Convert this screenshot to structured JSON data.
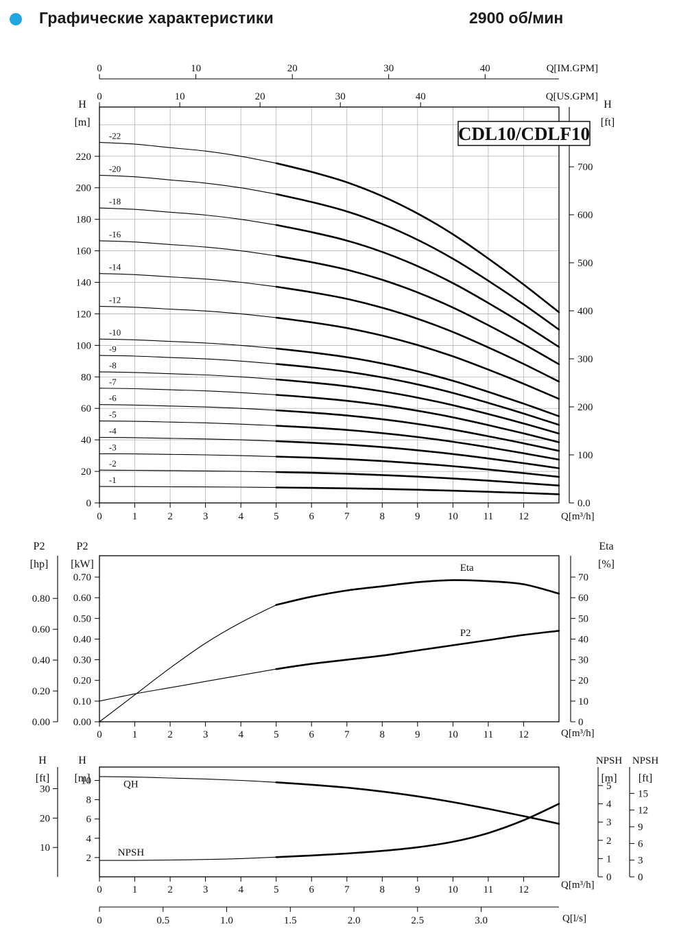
{
  "page": {
    "title": "Графические характеристики",
    "rpm": "2900 об/мин",
    "bullet_color": "#22a7e0"
  },
  "chart_data": [
    {
      "id": "hq",
      "type": "line",
      "title": "CDL10/CDLF10",
      "thick_from_q": 5,
      "x_axis": {
        "label": "Q[m³/h]",
        "ticks": [
          [
            "0",
            0
          ],
          [
            "1",
            1
          ],
          [
            "2",
            2
          ],
          [
            "3",
            3
          ],
          [
            "4",
            4
          ],
          [
            "5",
            5
          ],
          [
            "6",
            6
          ],
          [
            "7",
            7
          ],
          [
            "8",
            8
          ],
          [
            "9",
            9
          ],
          [
            "10",
            10
          ],
          [
            "11",
            11
          ],
          [
            "12",
            12
          ]
        ],
        "max": 13
      },
      "top_axes": [
        {
          "label": "Q[IM.GPM]",
          "ticks": [
            [
              "0",
              0
            ],
            [
              "10",
              10
            ],
            [
              "20",
              20
            ],
            [
              "30",
              30
            ],
            [
              "40",
              40
            ]
          ]
        },
        {
          "label": "Q[US.GPM]",
          "ticks": [
            [
              "0",
              0
            ],
            [
              "10",
              10
            ],
            [
              "20",
              20
            ],
            [
              "30",
              30
            ],
            [
              "40",
              40
            ]
          ]
        }
      ],
      "y_left": {
        "title": "H",
        "unit": "[m]",
        "ticks": [
          [
            "0",
            0
          ],
          [
            "20",
            20
          ],
          [
            "40",
            40
          ],
          [
            "60",
            60
          ],
          [
            "80",
            80
          ],
          [
            "100",
            100
          ],
          [
            "120",
            120
          ],
          [
            "140",
            140
          ],
          [
            "160",
            160
          ],
          [
            "180",
            180
          ],
          [
            "200",
            200
          ],
          [
            "220",
            220
          ]
        ]
      },
      "y_right": {
        "title": "H",
        "unit": "[ft]",
        "ticks": [
          [
            "0.0",
            0
          ],
          [
            "100",
            100
          ],
          [
            "200",
            200
          ],
          [
            "300",
            300
          ],
          [
            "400",
            400
          ],
          [
            "500",
            500
          ],
          [
            "600",
            600
          ],
          [
            "700",
            700
          ]
        ]
      },
      "x": [
        0,
        1,
        2,
        3,
        4,
        5,
        6,
        7,
        8,
        9,
        10,
        11,
        12,
        13
      ],
      "series": [
        {
          "name": "-22",
          "values": [
            228.8,
            227.7,
            225.5,
            223.3,
            220.0,
            215.6,
            210.1,
            203.5,
            194.7,
            183.7,
            170.5,
            155.1,
            138.6,
            121.0
          ]
        },
        {
          "name": "-20",
          "values": [
            208.0,
            207.0,
            205.0,
            203.0,
            200.0,
            196.0,
            191.0,
            185.0,
            177.0,
            167.0,
            155.0,
            141.0,
            126.0,
            110.0
          ]
        },
        {
          "name": "-18",
          "values": [
            187.2,
            186.3,
            184.5,
            182.7,
            180.0,
            176.4,
            171.9,
            166.5,
            159.3,
            150.3,
            139.5,
            126.9,
            113.4,
            99.0
          ]
        },
        {
          "name": "-16",
          "values": [
            166.4,
            165.6,
            164.0,
            162.4,
            160.0,
            156.8,
            152.8,
            148.0,
            141.6,
            133.6,
            124.0,
            112.8,
            100.8,
            88.0
          ]
        },
        {
          "name": "-14",
          "values": [
            145.6,
            144.9,
            143.5,
            142.1,
            140.0,
            137.2,
            133.7,
            129.5,
            123.9,
            116.9,
            108.5,
            98.7,
            88.2,
            77.0
          ]
        },
        {
          "name": "-12",
          "values": [
            124.8,
            124.2,
            123.0,
            121.8,
            120.0,
            117.6,
            114.6,
            111.0,
            106.2,
            100.2,
            93.0,
            84.6,
            75.6,
            66.0
          ]
        },
        {
          "name": "-10",
          "values": [
            104.0,
            103.5,
            102.5,
            101.5,
            100.0,
            98.0,
            95.5,
            92.5,
            88.5,
            83.5,
            77.5,
            70.5,
            63.0,
            55.0
          ]
        },
        {
          "name": "-9",
          "values": [
            93.6,
            93.2,
            92.3,
            91.4,
            90.0,
            88.2,
            86.0,
            83.3,
            79.7,
            75.2,
            69.8,
            63.5,
            56.7,
            49.5
          ]
        },
        {
          "name": "-8",
          "values": [
            83.2,
            82.8,
            82.0,
            81.2,
            80.0,
            78.4,
            76.4,
            74.0,
            70.8,
            66.8,
            62.0,
            56.4,
            50.4,
            44.0
          ]
        },
        {
          "name": "-7",
          "values": [
            72.8,
            72.5,
            71.8,
            71.1,
            70.0,
            68.6,
            66.9,
            64.8,
            62.0,
            58.5,
            54.3,
            49.4,
            44.1,
            38.5
          ]
        },
        {
          "name": "-6",
          "values": [
            62.4,
            62.1,
            61.5,
            60.9,
            60.0,
            58.8,
            57.3,
            55.5,
            53.1,
            50.1,
            46.5,
            42.3,
            37.8,
            33.0
          ]
        },
        {
          "name": "-5",
          "values": [
            52.0,
            51.8,
            51.3,
            50.8,
            50.0,
            49.0,
            47.8,
            46.3,
            44.3,
            41.8,
            38.8,
            35.3,
            31.5,
            27.5
          ]
        },
        {
          "name": "-4",
          "values": [
            41.6,
            41.4,
            41.0,
            40.6,
            40.0,
            39.2,
            38.2,
            37.0,
            35.4,
            33.4,
            31.0,
            28.2,
            25.2,
            22.0
          ]
        },
        {
          "name": "-3",
          "values": [
            31.2,
            31.1,
            30.8,
            30.5,
            30.0,
            29.4,
            28.7,
            27.8,
            26.6,
            25.1,
            23.3,
            21.2,
            18.9,
            16.5
          ]
        },
        {
          "name": "-2",
          "values": [
            20.8,
            20.7,
            20.5,
            20.3,
            20.0,
            19.6,
            19.1,
            18.5,
            17.7,
            16.7,
            15.5,
            14.1,
            12.6,
            11.0
          ]
        },
        {
          "name": "-1",
          "values": [
            10.4,
            10.35,
            10.25,
            10.15,
            10.0,
            9.8,
            9.55,
            9.25,
            8.85,
            8.35,
            7.75,
            7.05,
            6.3,
            5.5
          ]
        }
      ]
    },
    {
      "id": "power-efficiency",
      "type": "line",
      "thick_from_q": 5,
      "x_axis": {
        "label": "Q[m³/h]",
        "ticks": [
          [
            "0",
            0
          ],
          [
            "1",
            1
          ],
          [
            "2",
            2
          ],
          [
            "3",
            3
          ],
          [
            "4",
            4
          ],
          [
            "5",
            5
          ],
          [
            "6",
            6
          ],
          [
            "7",
            7
          ],
          [
            "8",
            8
          ],
          [
            "9",
            9
          ],
          [
            "10",
            10
          ],
          [
            "11",
            11
          ],
          [
            "12",
            12
          ]
        ],
        "max": 13
      },
      "y_left_outer": {
        "title": "P2",
        "unit": "[hp]",
        "ticks": [
          [
            "0.00",
            0
          ],
          [
            "0.20",
            0.2
          ],
          [
            "0.40",
            0.4
          ],
          [
            "0.60",
            0.6
          ],
          [
            "0.80",
            0.8
          ]
        ]
      },
      "y_left": {
        "title": "P2",
        "unit": "[kW]",
        "ticks": [
          [
            "0.00",
            0
          ],
          [
            "0.10",
            0.1
          ],
          [
            "0.20",
            0.2
          ],
          [
            "0.30",
            0.3
          ],
          [
            "0.40",
            0.4
          ],
          [
            "0.50",
            0.5
          ],
          [
            "0.60",
            0.6
          ],
          [
            "0.70",
            0.7
          ]
        ]
      },
      "y_right": {
        "title": "Eta",
        "unit": "[%]",
        "ticks": [
          [
            "0",
            0
          ],
          [
            "10",
            10
          ],
          [
            "20",
            20
          ],
          [
            "30",
            30
          ],
          [
            "40",
            40
          ],
          [
            "50",
            50
          ],
          [
            "60",
            60
          ],
          [
            "70",
            70
          ]
        ]
      },
      "x": [
        0,
        1,
        2,
        3,
        4,
        5,
        6,
        7,
        8,
        9,
        10,
        11,
        12,
        13
      ],
      "series": [
        {
          "name": "Eta",
          "axis": "eta",
          "label_pos": [
            10.2,
            73
          ],
          "values": [
            0,
            13,
            26,
            38,
            48,
            56.5,
            60.5,
            63.5,
            65.5,
            67.5,
            68.5,
            68,
            66.5,
            62
          ]
        },
        {
          "name": "P2",
          "axis": "kw",
          "label_pos": [
            10.2,
            0.415
          ],
          "values": [
            0.1,
            0.135,
            0.165,
            0.195,
            0.225,
            0.255,
            0.28,
            0.3,
            0.32,
            0.345,
            0.37,
            0.395,
            0.42,
            0.44
          ]
        }
      ]
    },
    {
      "id": "qh-npsh",
      "type": "line",
      "thick_from_q": 5,
      "x_axis": {
        "label": "Q[m³/h]",
        "ticks": [
          [
            "0",
            0
          ],
          [
            "1",
            1
          ],
          [
            "2",
            2
          ],
          [
            "3",
            3
          ],
          [
            "4",
            4
          ],
          [
            "5",
            5
          ],
          [
            "6",
            6
          ],
          [
            "7",
            7
          ],
          [
            "8",
            8
          ],
          [
            "9",
            9
          ],
          [
            "10",
            10
          ],
          [
            "11",
            11
          ],
          [
            "12",
            12
          ]
        ],
        "max": 13
      },
      "x_axis2": {
        "label": "Q[l/s]",
        "ticks": [
          [
            "0",
            0
          ],
          [
            "0.5",
            0.5
          ],
          [
            "1.0",
            1.0
          ],
          [
            "1.5",
            1.5
          ],
          [
            "2.0",
            2.0
          ],
          [
            "2.5",
            2.5
          ],
          [
            "3.0",
            3.0
          ]
        ]
      },
      "y_left_outer": {
        "title": "H",
        "unit": "[ft]",
        "ticks": [
          [
            "10",
            10
          ],
          [
            "20",
            20
          ],
          [
            "30",
            30
          ]
        ]
      },
      "y_left": {
        "title": "H",
        "unit": "[m]",
        "ticks": [
          [
            "2",
            2
          ],
          [
            "4",
            4
          ],
          [
            "6",
            6
          ],
          [
            "8",
            8
          ],
          [
            "10",
            10
          ]
        ]
      },
      "y_right": {
        "title": "NPSH",
        "unit": "[m]",
        "ticks": [
          [
            "0",
            0
          ],
          [
            "1",
            1
          ],
          [
            "2",
            2
          ],
          [
            "3",
            3
          ],
          [
            "4",
            4
          ],
          [
            "5",
            5
          ]
        ]
      },
      "y_right_outer": {
        "title": "NPSH",
        "unit": "[ft]",
        "ticks": [
          [
            "0",
            0
          ],
          [
            "3",
            3
          ],
          [
            "6",
            6
          ],
          [
            "9",
            9
          ],
          [
            "12",
            12
          ],
          [
            "15",
            15
          ]
        ]
      },
      "x": [
        0,
        1,
        2,
        3,
        4,
        5,
        6,
        7,
        8,
        9,
        10,
        11,
        12,
        13
      ],
      "series": [
        {
          "name": "QH",
          "axis": "h_m",
          "label_pos": [
            0.68,
            9.3
          ],
          "values": [
            10.4,
            10.35,
            10.25,
            10.15,
            10.0,
            9.8,
            9.55,
            9.25,
            8.85,
            8.35,
            7.75,
            7.05,
            6.3,
            5.5
          ]
        },
        {
          "name": "NPSH",
          "axis": "npsh_m",
          "label_pos": [
            0.52,
            1.17
          ],
          "values": [
            0.9,
            0.9,
            0.92,
            0.95,
            1.0,
            1.08,
            1.17,
            1.28,
            1.42,
            1.62,
            1.92,
            2.4,
            3.1,
            4.0
          ]
        }
      ]
    }
  ]
}
